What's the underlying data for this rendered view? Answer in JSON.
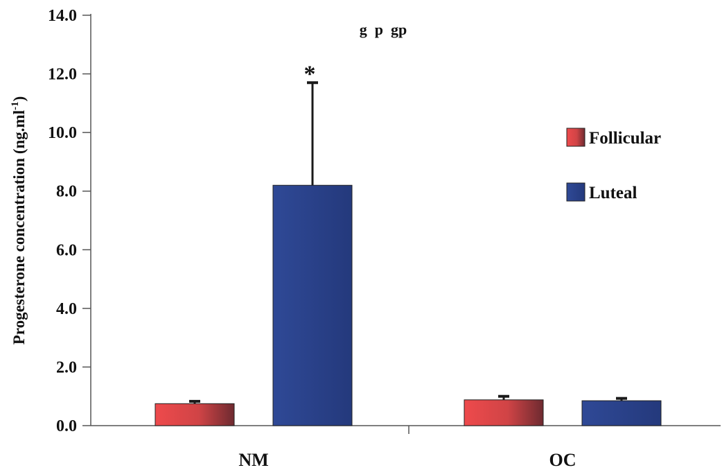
{
  "chart_data": {
    "type": "bar",
    "title": "g  p  gp",
    "ylabel": "Progesterone concentration (ng.ml",
    "ylabel_superscript": "-1",
    "ylabel_close": ")",
    "xlabel": "",
    "ylim": [
      0,
      14
    ],
    "yticks": [
      "0.0",
      "2.0",
      "4.0",
      "6.0",
      "8.0",
      "10.0",
      "12.0",
      "14.0"
    ],
    "ytick_values": [
      0,
      2,
      4,
      6,
      8,
      10,
      12,
      14
    ],
    "categories": [
      "NM",
      "OC"
    ],
    "series": [
      {
        "name": "Follicular",
        "values": [
          0.75,
          0.88
        ],
        "errors": [
          0.08,
          0.12
        ],
        "color": "#e8474a",
        "color_dark": "#7a2a30"
      },
      {
        "name": "Luteal",
        "values": [
          8.2,
          0.85
        ],
        "errors": [
          3.5,
          0.08
        ],
        "color": "#2d4590",
        "color_dark": "#1e2f6a"
      }
    ],
    "annotations": [
      {
        "text": "*",
        "category": 0,
        "series": 1
      }
    ],
    "legend_position": "right",
    "grid": false
  }
}
